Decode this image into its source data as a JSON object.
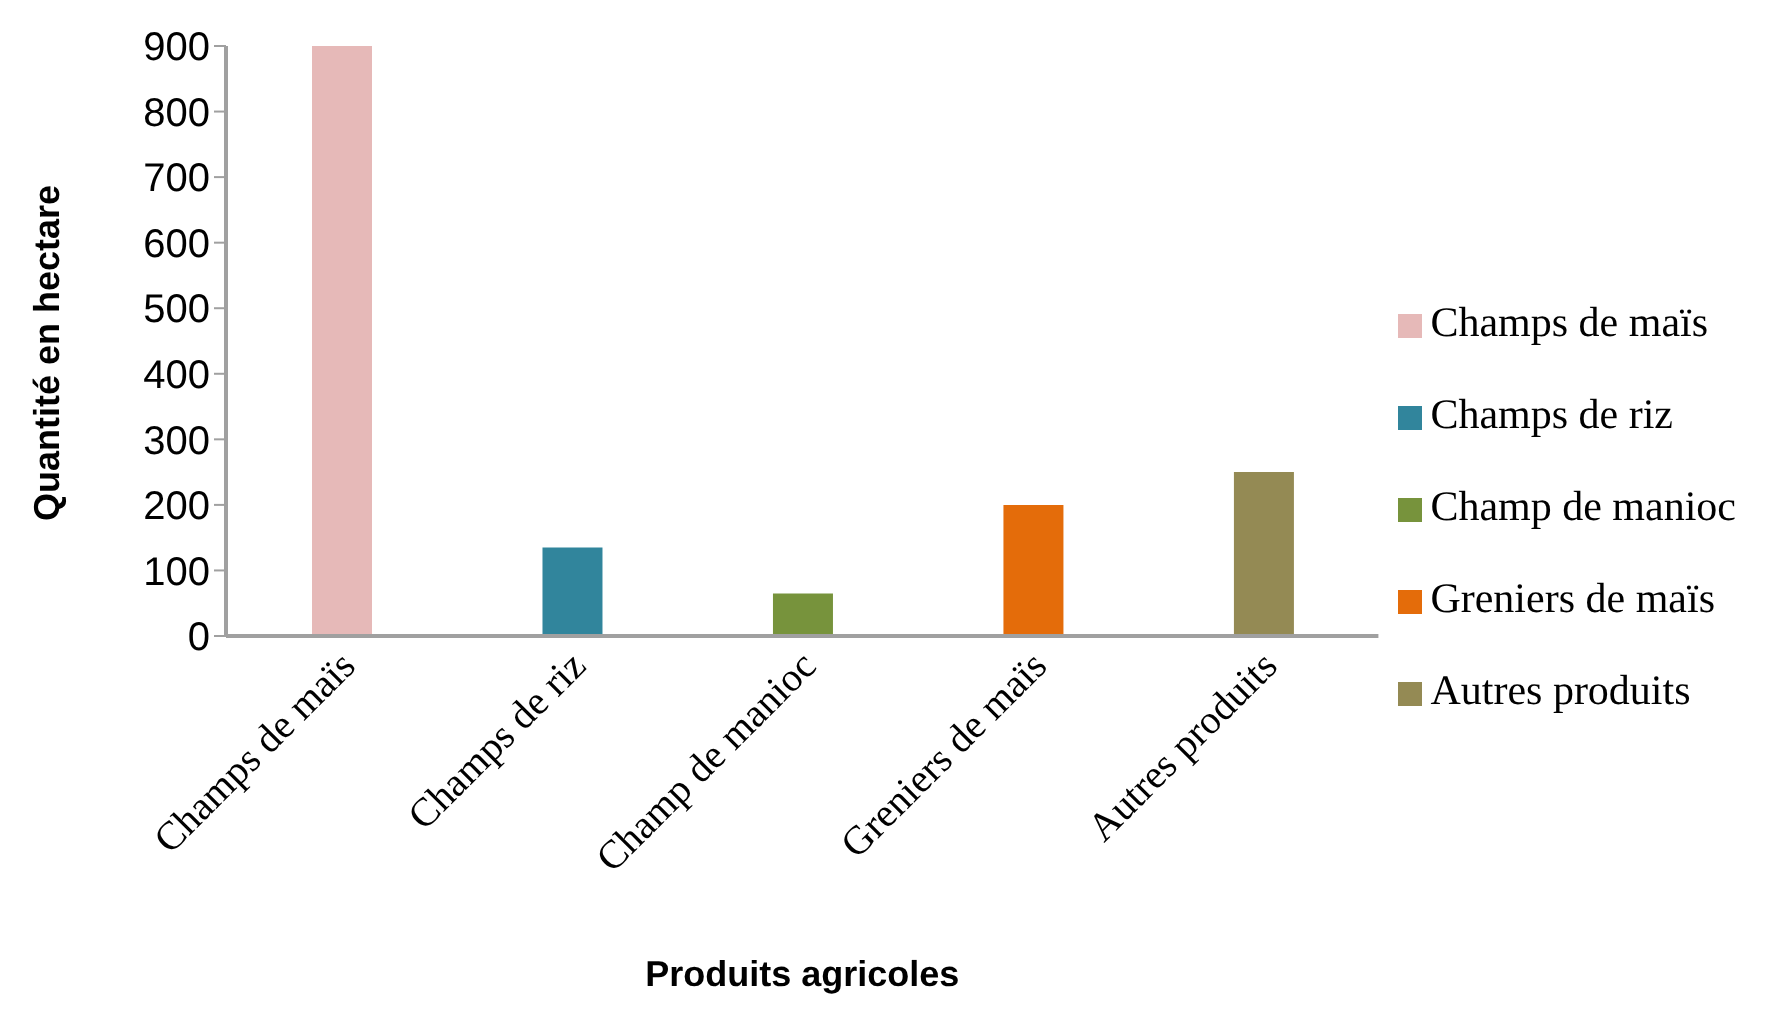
{
  "chart_data": {
    "type": "bar",
    "xlabel": "Produits agricoles",
    "ylabel": "Quantité en hectare",
    "categories": [
      "Champs de maïs",
      "Champs de riz",
      "Champ de manioc",
      "Greniers de maïs",
      "Autres produits"
    ],
    "series": [
      {
        "name": "Champs de maïs",
        "color": "#e6b9b8",
        "values": [
          900,
          null,
          null,
          null,
          null
        ]
      },
      {
        "name": "Champs de riz",
        "color": "#31859c",
        "values": [
          null,
          135,
          null,
          null,
          null
        ]
      },
      {
        "name": "Champ de manioc",
        "color": "#77933c",
        "values": [
          null,
          null,
          65,
          null,
          null
        ]
      },
      {
        "name": "Greniers de maïs",
        "color": "#e46c0a",
        "values": [
          null,
          null,
          null,
          200,
          null
        ]
      },
      {
        "name": "Autres produits",
        "color": "#948a54",
        "values": [
          null,
          null,
          null,
          null,
          250
        ]
      }
    ],
    "stacked": true,
    "ylim": [
      0,
      900
    ],
    "yticks": [
      0,
      100,
      200,
      300,
      400,
      500,
      600,
      700,
      800,
      900
    ],
    "grid": false,
    "legend": "right"
  }
}
